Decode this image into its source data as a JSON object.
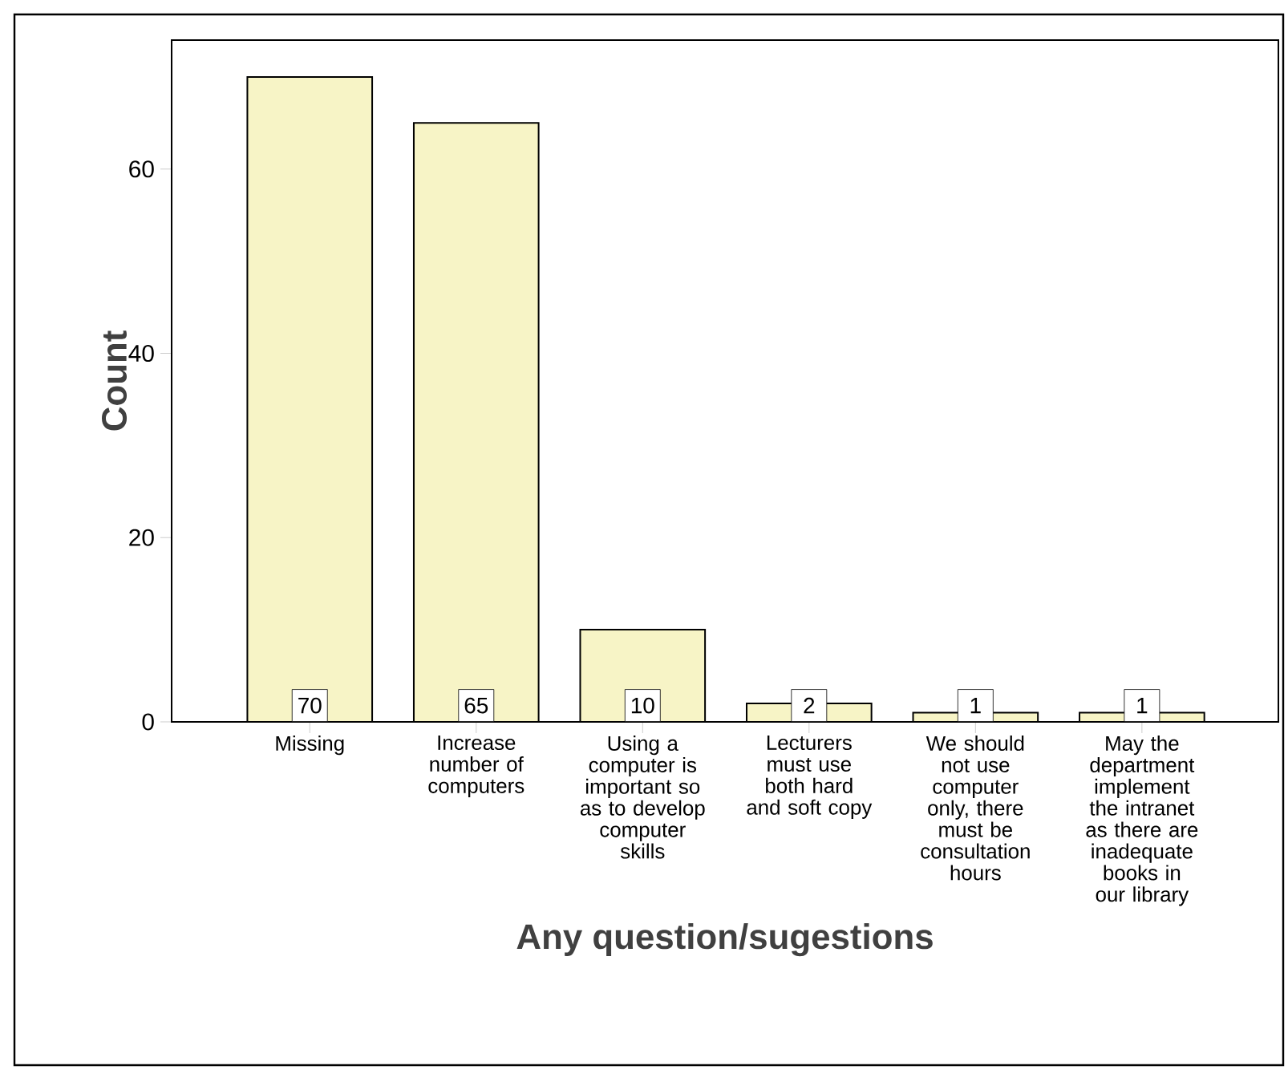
{
  "chart_data": {
    "type": "bar",
    "xlabel": "Any question/sugestions",
    "ylabel": "Count",
    "categories": [
      "Missing",
      "Increase number of computers",
      "Using a computer is important so as to develop computer skills",
      "Lecturers must use both hard and soft copy",
      "We should not use computer only, there must be consultation hours",
      "May the department implement the intranet as there are inadequate books in our library"
    ],
    "values": [
      70,
      65,
      10,
      2,
      1,
      1
    ],
    "color": "#f7f4c6",
    "ylim": [
      0,
      74
    ],
    "yticks": [
      0,
      20,
      40,
      60
    ],
    "grid": false,
    "data_labels": true
  }
}
